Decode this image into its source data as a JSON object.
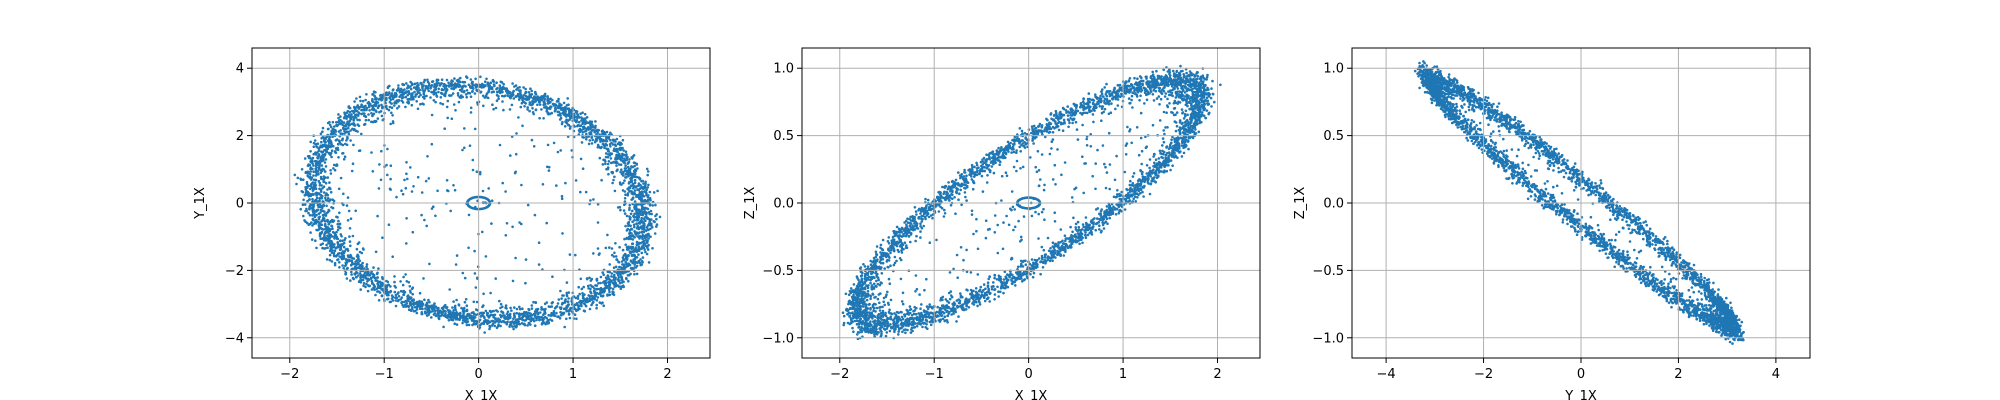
{
  "chart_data": [
    {
      "type": "scatter",
      "xlabel": "X_1X",
      "ylabel": "Y_1X",
      "xlim": [
        -2.4,
        2.45
      ],
      "ylim": [
        -4.6,
        4.6
      ],
      "xticks": [
        -2,
        -1,
        0,
        1,
        2
      ],
      "yticks": [
        -4,
        -2,
        0,
        2,
        4
      ],
      "xticklabels": [
        "−2",
        "−1",
        "0",
        "1",
        "2"
      ],
      "yticklabels": [
        "−4",
        "−2",
        "0",
        "2",
        "4"
      ],
      "grid": true,
      "series": [
        {
          "points_description": "dense elliptical ring of points with a sparse spiral inward to the origin",
          "ellipse": {
            "a": 1.85,
            "b": 3.6,
            "rotation_deg": -12
          }
        }
      ],
      "color": "#1f77b4"
    },
    {
      "type": "scatter",
      "xlabel": "X_1X",
      "ylabel": "Z_1X",
      "xlim": [
        -2.4,
        2.45
      ],
      "ylim": [
        -1.15,
        1.15
      ],
      "xticks": [
        -2,
        -1,
        0,
        1,
        2
      ],
      "yticks": [
        -1.0,
        -0.5,
        0.0,
        0.5,
        1.0
      ],
      "xticklabels": [
        "−2",
        "−1",
        "0",
        "1",
        "2"
      ],
      "yticklabels": [
        "−1.0",
        "−0.5",
        "0.0",
        "0.5",
        "1.0"
      ],
      "grid": true,
      "series": [
        {
          "points_description": "dense tilted elliptical ring with sparse inward spiral",
          "ellipse": {
            "a": 1.9,
            "b": 0.55,
            "tilt": 0.42
          }
        }
      ],
      "color": "#1f77b4"
    },
    {
      "type": "scatter",
      "xlabel": "Y_1X",
      "ylabel": "Z_1X",
      "xlim": [
        -4.7,
        4.7
      ],
      "ylim": [
        -1.15,
        1.15
      ],
      "xticks": [
        -4,
        -2,
        0,
        2,
        4
      ],
      "yticks": [
        -1.0,
        -0.5,
        0.0,
        0.5,
        1.0
      ],
      "xticklabels": [
        "−4",
        "−2",
        "0",
        "2",
        "4"
      ],
      "yticklabels": [
        "−1.0",
        "−0.5",
        "0.0",
        "0.5",
        "1.0"
      ],
      "grid": true,
      "series": [
        {
          "points_description": "narrow elongated ring oriented from upper-left to lower-right",
          "ellipse": {
            "a": 3.3,
            "b": 0.2,
            "slope": -0.28
          }
        }
      ],
      "color": "#1f77b4"
    }
  ],
  "style": {
    "point_color": "#1f77b4",
    "grid_color": "#b0b0b0",
    "axis_color": "#000000"
  }
}
